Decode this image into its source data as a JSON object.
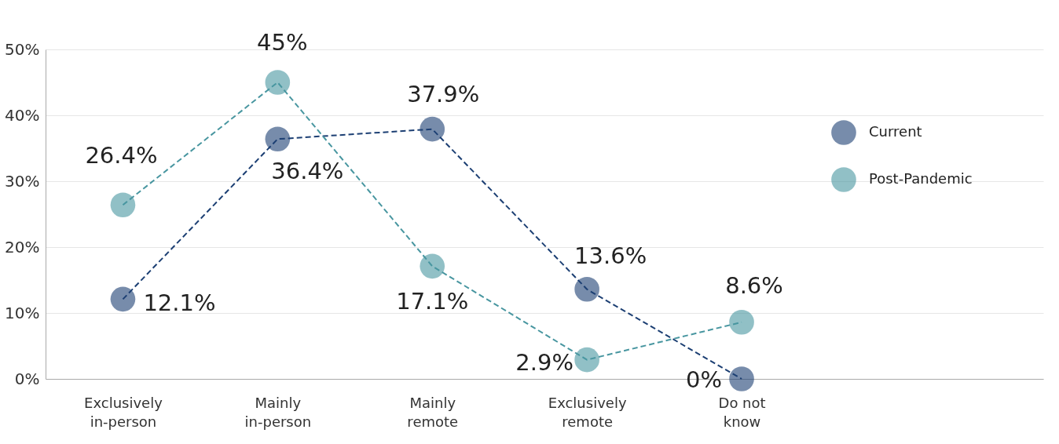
{
  "chart_data": {
    "type": "line",
    "categories": [
      "Exclusively in-person",
      "Mainly in-person",
      "Mainly remote",
      "Exclusively remote",
      "Do not know"
    ],
    "series": [
      {
        "name": "Current",
        "color": "#1c3f73",
        "values": [
          12.1,
          36.4,
          37.9,
          13.6,
          0
        ],
        "value_labels": [
          "12.1%",
          "36.4%",
          "37.9%",
          "13.6%",
          "0%"
        ]
      },
      {
        "name": "Post-Pandemic",
        "color": "#4896a0",
        "values": [
          26.4,
          45,
          17.1,
          2.9,
          8.6
        ],
        "value_labels": [
          "26.4%",
          "45%",
          "17.1%",
          "2.9%",
          "8.6%"
        ]
      }
    ],
    "ylim": [
      0,
      50
    ],
    "yticks": [
      {
        "value": 0,
        "label": "0%"
      },
      {
        "value": 10,
        "label": "10%"
      },
      {
        "value": 20,
        "label": "20%"
      },
      {
        "value": 30,
        "label": "30%"
      },
      {
        "value": 40,
        "label": "40%"
      },
      {
        "value": 50,
        "label": "50%"
      }
    ],
    "grid": "y",
    "legend": "top right",
    "marker": "circle",
    "line_style": "dashed"
  }
}
